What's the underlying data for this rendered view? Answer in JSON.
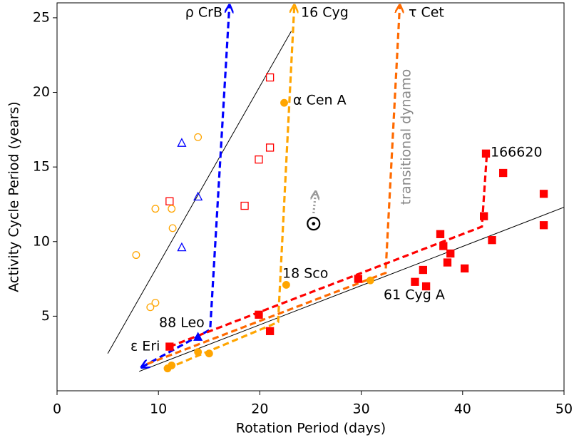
{
  "chart_data": {
    "type": "scatter",
    "x_label": "Rotation Period (days)",
    "y_label": "Activity Cycle Period (years)",
    "xlim": [
      0,
      50
    ],
    "ylim": [
      0,
      26
    ],
    "xticks": [
      0,
      10,
      20,
      30,
      40,
      50
    ],
    "yticks": [
      5,
      10,
      15,
      20,
      25
    ],
    "series": [
      {
        "mode": "line",
        "color": "#000000",
        "style": "solid",
        "x": [
          5.0,
          23.1
        ],
        "values": [
          2.5,
          24.1
        ]
      },
      {
        "mode": "line",
        "color": "#000000",
        "style": "solid",
        "x": [
          8.1,
          50
        ],
        "values": [
          1.3,
          12.3
        ]
      },
      {
        "mode": "line",
        "color": "#0000ff",
        "style": "dashed",
        "arrowheads": "both",
        "x": [
          8.4,
          15.1,
          17.0
        ],
        "values": [
          1.6,
          4.1,
          25.8
        ]
      },
      {
        "mode": "line",
        "color": "#ff6a00",
        "style": "dashed",
        "arrowheads": "end",
        "x": [
          8.9,
          32.4,
          33.8
        ],
        "values": [
          1.8,
          7.9,
          25.8
        ]
      },
      {
        "mode": "line",
        "color": "#ffa500",
        "style": "dashed",
        "arrowheads": "end",
        "x": [
          10.9,
          21.8,
          23.4
        ],
        "values": [
          1.5,
          4.6,
          25.8
        ]
      },
      {
        "mode": "line",
        "color": "#ff0000",
        "style": "dashed",
        "x": [
          11.1,
          41.9,
          42.4
        ],
        "values": [
          2.96,
          11.0,
          16.0
        ]
      },
      {
        "mode": "line",
        "color": "#999999",
        "style": "dotted",
        "arrowheads": "end",
        "x": [
          25.3,
          25.5
        ],
        "values": [
          11.9,
          13.3
        ]
      },
      {
        "mode": "marker",
        "marker": "square",
        "filled": true,
        "color": "#ff0000",
        "x": [
          11.1,
          19.9,
          21.0,
          29.7,
          35.3,
          36.1,
          36.4,
          37.8,
          38.1,
          38.5,
          38.8,
          40.2,
          42.1,
          42.3,
          42.9,
          44.0,
          48.0,
          48.0
        ],
        "values": [
          2.96,
          5.1,
          4.0,
          7.5,
          7.3,
          8.1,
          7.0,
          10.5,
          9.7,
          8.6,
          9.2,
          8.2,
          11.7,
          15.9,
          10.1,
          14.6,
          13.2,
          11.1
        ]
      },
      {
        "mode": "marker",
        "marker": "square",
        "filled": false,
        "color": "#ff0000",
        "x": [
          11.1,
          18.5,
          19.9,
          21.0,
          21.0
        ],
        "values": [
          12.7,
          12.4,
          15.5,
          16.3,
          21.0
        ]
      },
      {
        "mode": "marker",
        "marker": "circle",
        "filled": false,
        "color": "#ffa500",
        "x": [
          7.8,
          9.7,
          11.3,
          11.4,
          13.9,
          9.2,
          9.7
        ],
        "values": [
          9.1,
          12.2,
          12.2,
          10.9,
          17.0,
          5.6,
          5.9
        ]
      },
      {
        "mode": "marker",
        "marker": "circle",
        "filled": true,
        "color": "#ffa500",
        "x": [
          22.4,
          22.6,
          30.9,
          10.9,
          11.3,
          13.9,
          15.0
        ],
        "values": [
          19.3,
          7.1,
          7.4,
          1.5,
          1.7,
          2.6,
          2.5
        ]
      },
      {
        "mode": "marker",
        "marker": "triangle",
        "filled": false,
        "color": "#0000ff",
        "x": [
          12.3,
          13.9,
          12.3
        ],
        "values": [
          16.6,
          13.0,
          9.6
        ]
      },
      {
        "mode": "marker",
        "marker": "triangle",
        "filled": true,
        "color": "#0000ff",
        "x": [
          13.9
        ],
        "values": [
          3.6
        ]
      },
      {
        "mode": "marker",
        "marker": "sun",
        "filled": false,
        "color": "#000000",
        "x": [
          25.3
        ],
        "values": [
          11.2
        ]
      }
    ],
    "annotations": [
      "ρ CrB",
      "16 Cyg",
      "τ Cet",
      "α Cen A",
      "18 Sco",
      "61 Cyg A",
      "166620",
      "88 Leo",
      "ε Eri",
      "transitional dynamo"
    ]
  }
}
